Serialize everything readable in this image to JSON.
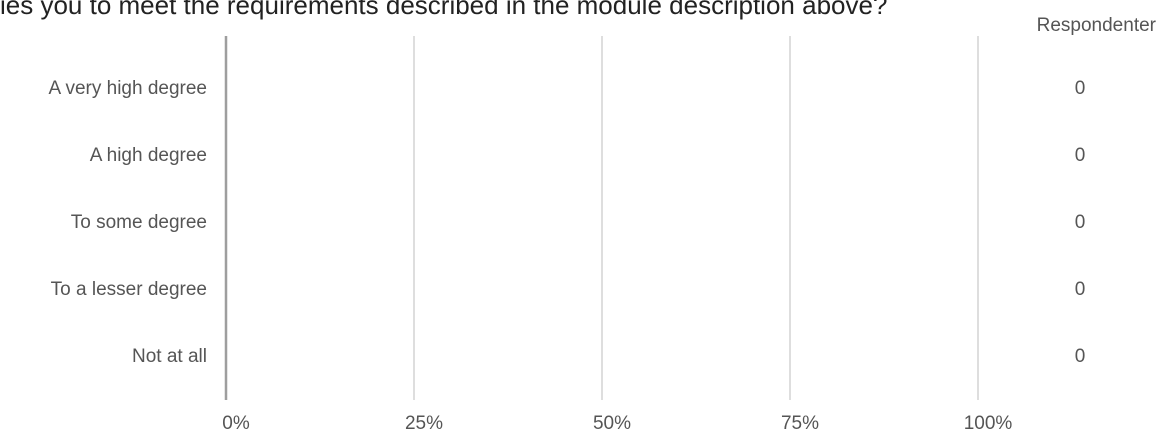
{
  "title": "ies you to meet the requirements described in the module description above?",
  "respondents_header": "Respondenter",
  "chart_data": {
    "type": "bar",
    "orientation": "horizontal",
    "categories": [
      "A very high degree",
      "A high degree",
      "To some degree",
      "To a lesser degree",
      "Not at all"
    ],
    "values": [
      0,
      0,
      0,
      0,
      0
    ],
    "respondents": [
      "0",
      "0",
      "0",
      "0",
      "0"
    ],
    "x_ticks": [
      "0%",
      "25%",
      "50%",
      "75%",
      "100%"
    ],
    "xlim": [
      0,
      100
    ],
    "grid": true,
    "colors": {
      "axis": "#9e9e9e",
      "grid": "#bdbdbd",
      "bar": "#4a90d9",
      "text": "#555555"
    }
  }
}
